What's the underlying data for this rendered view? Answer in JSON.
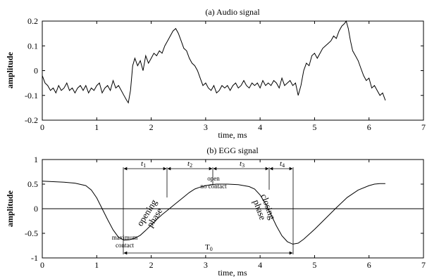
{
  "chart_data": [
    {
      "type": "line",
      "title": "(a) Audio signal",
      "xlabel": "time, ms",
      "ylabel": "amplitude",
      "xlim": [
        0,
        7
      ],
      "ylim": [
        -0.2,
        0.2
      ],
      "xticks": [
        "0",
        "1",
        "2",
        "3",
        "4",
        "5",
        "6",
        "7"
      ],
      "yticks": [
        "0.2",
        "0.1",
        "0",
        "-0.1",
        "-0.2"
      ],
      "series": [
        {
          "x": [
            0,
            0.05,
            0.1,
            0.15,
            0.2,
            0.25,
            0.3,
            0.35,
            0.4,
            0.45,
            0.5,
            0.55,
            0.6,
            0.65,
            0.7,
            0.75,
            0.8,
            0.85,
            0.9,
            0.95,
            1.0,
            1.05,
            1.1,
            1.15,
            1.2,
            1.25,
            1.3,
            1.35,
            1.4,
            1.45,
            1.5,
            1.55,
            1.58,
            1.62,
            1.66,
            1.7,
            1.75,
            1.8,
            1.85,
            1.9,
            1.95,
            2.0,
            2.05,
            2.1,
            2.15,
            2.2,
            2.25,
            2.3,
            2.35,
            2.4,
            2.45,
            2.5,
            2.55,
            2.6,
            2.65,
            2.7,
            2.75,
            2.8,
            2.85,
            2.9,
            2.95,
            3.0,
            3.05,
            3.1,
            3.15,
            3.2,
            3.25,
            3.3,
            3.35,
            3.4,
            3.45,
            3.5,
            3.55,
            3.6,
            3.65,
            3.7,
            3.75,
            3.8,
            3.85,
            3.9,
            3.95,
            4.0,
            4.05,
            4.1,
            4.15,
            4.2,
            4.25,
            4.3,
            4.35,
            4.4,
            4.45,
            4.5,
            4.55,
            4.6,
            4.65,
            4.7,
            4.75,
            4.8,
            4.85,
            4.9,
            4.95,
            5.0,
            5.05,
            5.1,
            5.15,
            5.2,
            5.25,
            5.3,
            5.35,
            5.4,
            5.45,
            5.5,
            5.55,
            5.58,
            5.62,
            5.66,
            5.7,
            5.75,
            5.8,
            5.85,
            5.9,
            5.95,
            6.0,
            6.05,
            6.1,
            6.15,
            6.2,
            6.25,
            6.3
          ],
          "y": [
            -0.02,
            -0.05,
            -0.06,
            -0.08,
            -0.07,
            -0.09,
            -0.06,
            -0.08,
            -0.07,
            -0.05,
            -0.08,
            -0.07,
            -0.09,
            -0.07,
            -0.06,
            -0.08,
            -0.06,
            -0.09,
            -0.07,
            -0.08,
            -0.06,
            -0.05,
            -0.09,
            -0.07,
            -0.06,
            -0.08,
            -0.04,
            -0.07,
            -0.06,
            -0.08,
            -0.1,
            -0.12,
            -0.13,
            -0.08,
            0.02,
            0.05,
            0.02,
            0.04,
            0.0,
            0.06,
            0.03,
            0.05,
            0.07,
            0.06,
            0.08,
            0.07,
            0.1,
            0.12,
            0.14,
            0.16,
            0.17,
            0.15,
            0.12,
            0.09,
            0.08,
            0.05,
            0.03,
            0.02,
            0.0,
            -0.03,
            -0.06,
            -0.05,
            -0.07,
            -0.08,
            -0.06,
            -0.09,
            -0.08,
            -0.06,
            -0.07,
            -0.06,
            -0.08,
            -0.06,
            -0.05,
            -0.07,
            -0.06,
            -0.04,
            -0.06,
            -0.07,
            -0.05,
            -0.06,
            -0.05,
            -0.07,
            -0.04,
            -0.06,
            -0.05,
            -0.06,
            -0.04,
            -0.05,
            -0.07,
            -0.03,
            -0.06,
            -0.05,
            -0.04,
            -0.06,
            -0.05,
            -0.1,
            -0.06,
            0.0,
            0.03,
            0.02,
            0.06,
            0.07,
            0.05,
            0.07,
            0.09,
            0.1,
            0.11,
            0.12,
            0.14,
            0.13,
            0.16,
            0.18,
            0.19,
            0.2,
            0.17,
            0.12,
            0.08,
            0.06,
            0.04,
            0.01,
            -0.02,
            -0.04,
            -0.03,
            -0.07,
            -0.06,
            -0.08,
            -0.1,
            -0.09,
            -0.12
          ]
        }
      ]
    },
    {
      "type": "line",
      "title": "(b) EGG signal",
      "xlabel": "time, ms",
      "ylabel": "amplitude",
      "xlim": [
        0,
        7
      ],
      "ylim": [
        -1,
        1
      ],
      "xticks": [
        "0",
        "1",
        "2",
        "3",
        "4",
        "5",
        "6",
        "7"
      ],
      "yticks": [
        "1",
        "0.5",
        "0",
        "-0.5",
        "-1"
      ],
      "series": [
        {
          "x": [
            0,
            0.2,
            0.4,
            0.6,
            0.8,
            0.9,
            1.0,
            1.1,
            1.2,
            1.3,
            1.4,
            1.5,
            1.6,
            1.7,
            1.8,
            1.9,
            2.0,
            2.1,
            2.2,
            2.3,
            2.4,
            2.5,
            2.6,
            2.7,
            2.8,
            2.9,
            3.0,
            3.1,
            3.2,
            3.4,
            3.6,
            3.8,
            3.9,
            4.0,
            4.1,
            4.2,
            4.3,
            4.4,
            4.5,
            4.6,
            4.7,
            4.8,
            4.9,
            5.0,
            5.2,
            5.4,
            5.6,
            5.8,
            6.0,
            6.1,
            6.2,
            6.3
          ],
          "y": [
            0.56,
            0.55,
            0.54,
            0.52,
            0.47,
            0.38,
            0.22,
            0.0,
            -0.22,
            -0.43,
            -0.58,
            -0.64,
            -0.63,
            -0.6,
            -0.54,
            -0.44,
            -0.33,
            -0.22,
            -0.12,
            -0.03,
            0.06,
            0.15,
            0.24,
            0.33,
            0.4,
            0.44,
            0.47,
            0.49,
            0.5,
            0.5,
            0.49,
            0.45,
            0.4,
            0.28,
            0.1,
            -0.12,
            -0.35,
            -0.55,
            -0.67,
            -0.72,
            -0.7,
            -0.62,
            -0.52,
            -0.42,
            -0.2,
            0.02,
            0.23,
            0.38,
            0.47,
            0.5,
            0.51,
            0.51
          ]
        }
      ],
      "annotations": {
        "t1": "t",
        "t1_sub": "1",
        "t2": "t",
        "t2_sub": "2",
        "t3": "t",
        "t3_sub": "3",
        "t4": "t",
        "t4_sub": "4",
        "opening_1": "opening",
        "opening_2": "phase",
        "closing_1": "closing",
        "closing_2": "phase",
        "open_1": "open",
        "open_2": "no contact",
        "max_1": "maximum",
        "max_2": "contact",
        "T0": "T",
        "T0_sub": "0"
      }
    }
  ]
}
